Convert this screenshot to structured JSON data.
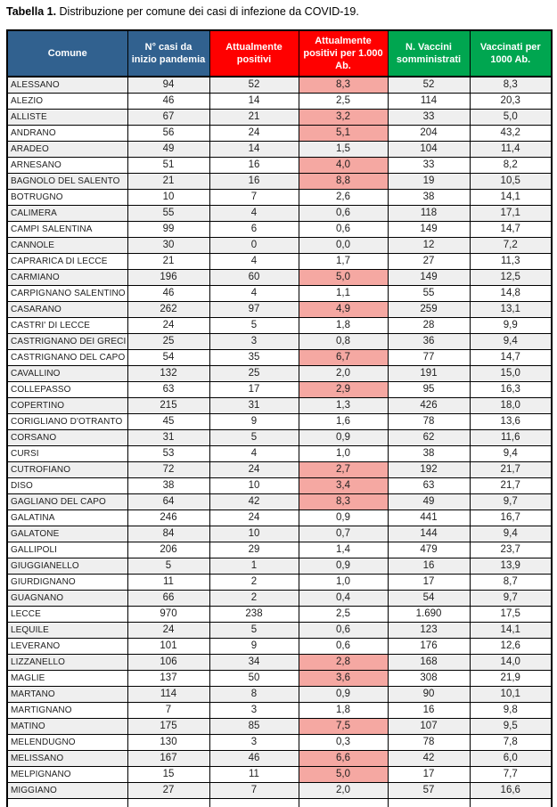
{
  "title": {
    "prefix": "Tabella 1.",
    "text": " Distribuzione per comune dei casi di infezione da COVID-19."
  },
  "colors": {
    "blue": "#31618F",
    "red": "#FF0000",
    "green": "#00A650",
    "pink": "#F5A8A2",
    "stripe": "#EFEFEF"
  },
  "table": {
    "columns": [
      {
        "key": "comune",
        "label": "Comune",
        "color": "blue"
      },
      {
        "key": "casi",
        "label": "N° casi da inizio pandemia",
        "color": "blue"
      },
      {
        "key": "positivi",
        "label": "Attualmente positivi",
        "color": "red"
      },
      {
        "key": "per1000",
        "label": "Attualmente positivi per 1.000 Ab.",
        "color": "red"
      },
      {
        "key": "vaccini",
        "label": "N. Vaccini somministrati",
        "color": "green"
      },
      {
        "key": "vacc1000",
        "label": "Vaccinati per 1000 Ab.",
        "color": "green"
      }
    ],
    "rows": [
      {
        "comune": "ALESSANO",
        "casi": "94",
        "positivi": "52",
        "per1000": "8,3",
        "per1000_highlight": true,
        "vaccini": "52",
        "vacc1000": "8,3"
      },
      {
        "comune": "ALEZIO",
        "casi": "46",
        "positivi": "14",
        "per1000": "2,5",
        "per1000_highlight": false,
        "vaccini": "114",
        "vacc1000": "20,3"
      },
      {
        "comune": "ALLISTE",
        "casi": "67",
        "positivi": "21",
        "per1000": "3,2",
        "per1000_highlight": true,
        "vaccini": "33",
        "vacc1000": "5,0"
      },
      {
        "comune": "ANDRANO",
        "casi": "56",
        "positivi": "24",
        "per1000": "5,1",
        "per1000_highlight": true,
        "vaccini": "204",
        "vacc1000": "43,2"
      },
      {
        "comune": "ARADEO",
        "casi": "49",
        "positivi": "14",
        "per1000": "1,5",
        "per1000_highlight": false,
        "vaccini": "104",
        "vacc1000": "11,4"
      },
      {
        "comune": "ARNESANO",
        "casi": "51",
        "positivi": "16",
        "per1000": "4,0",
        "per1000_highlight": true,
        "vaccini": "33",
        "vacc1000": "8,2"
      },
      {
        "comune": "BAGNOLO DEL SALENTO",
        "casi": "21",
        "positivi": "16",
        "per1000": "8,8",
        "per1000_highlight": true,
        "vaccini": "19",
        "vacc1000": "10,5"
      },
      {
        "comune": "BOTRUGNO",
        "casi": "10",
        "positivi": "7",
        "per1000": "2,6",
        "per1000_highlight": false,
        "vaccini": "38",
        "vacc1000": "14,1"
      },
      {
        "comune": "CALIMERA",
        "casi": "55",
        "positivi": "4",
        "per1000": "0,6",
        "per1000_highlight": false,
        "vaccini": "118",
        "vacc1000": "17,1"
      },
      {
        "comune": "CAMPI SALENTINA",
        "casi": "99",
        "positivi": "6",
        "per1000": "0,6",
        "per1000_highlight": false,
        "vaccini": "149",
        "vacc1000": "14,7"
      },
      {
        "comune": "CANNOLE",
        "casi": "30",
        "positivi": "0",
        "per1000": "0,0",
        "per1000_highlight": false,
        "vaccini": "12",
        "vacc1000": "7,2"
      },
      {
        "comune": "CAPRARICA DI LECCE",
        "casi": "21",
        "positivi": "4",
        "per1000": "1,7",
        "per1000_highlight": false,
        "vaccini": "27",
        "vacc1000": "11,3"
      },
      {
        "comune": "CARMIANO",
        "casi": "196",
        "positivi": "60",
        "per1000": "5,0",
        "per1000_highlight": true,
        "vaccini": "149",
        "vacc1000": "12,5"
      },
      {
        "comune": "CARPIGNANO SALENTINO",
        "casi": "46",
        "positivi": "4",
        "per1000": "1,1",
        "per1000_highlight": false,
        "vaccini": "55",
        "vacc1000": "14,8"
      },
      {
        "comune": "CASARANO",
        "casi": "262",
        "positivi": "97",
        "per1000": "4,9",
        "per1000_highlight": true,
        "vaccini": "259",
        "vacc1000": "13,1"
      },
      {
        "comune": "CASTRI' DI LECCE",
        "casi": "24",
        "positivi": "5",
        "per1000": "1,8",
        "per1000_highlight": false,
        "vaccini": "28",
        "vacc1000": "9,9"
      },
      {
        "comune": "CASTRIGNANO DEI GRECI",
        "casi": "25",
        "positivi": "3",
        "per1000": "0,8",
        "per1000_highlight": false,
        "vaccini": "36",
        "vacc1000": "9,4"
      },
      {
        "comune": "CASTRIGNANO DEL CAPO",
        "casi": "54",
        "positivi": "35",
        "per1000": "6,7",
        "per1000_highlight": true,
        "vaccini": "77",
        "vacc1000": "14,7"
      },
      {
        "comune": "CAVALLINO",
        "casi": "132",
        "positivi": "25",
        "per1000": "2,0",
        "per1000_highlight": false,
        "vaccini": "191",
        "vacc1000": "15,0"
      },
      {
        "comune": "COLLEPASSO",
        "casi": "63",
        "positivi": "17",
        "per1000": "2,9",
        "per1000_highlight": true,
        "vaccini": "95",
        "vacc1000": "16,3"
      },
      {
        "comune": "COPERTINO",
        "casi": "215",
        "positivi": "31",
        "per1000": "1,3",
        "per1000_highlight": false,
        "vaccini": "426",
        "vacc1000": "18,0"
      },
      {
        "comune": "CORIGLIANO D'OTRANTO",
        "casi": "45",
        "positivi": "9",
        "per1000": "1,6",
        "per1000_highlight": false,
        "vaccini": "78",
        "vacc1000": "13,6"
      },
      {
        "comune": "CORSANO",
        "casi": "31",
        "positivi": "5",
        "per1000": "0,9",
        "per1000_highlight": false,
        "vaccini": "62",
        "vacc1000": "11,6"
      },
      {
        "comune": "CURSI",
        "casi": "53",
        "positivi": "4",
        "per1000": "1,0",
        "per1000_highlight": false,
        "vaccini": "38",
        "vacc1000": "9,4"
      },
      {
        "comune": "CUTROFIANO",
        "casi": "72",
        "positivi": "24",
        "per1000": "2,7",
        "per1000_highlight": true,
        "vaccini": "192",
        "vacc1000": "21,7"
      },
      {
        "comune": "DISO",
        "casi": "38",
        "positivi": "10",
        "per1000": "3,4",
        "per1000_highlight": true,
        "vaccini": "63",
        "vacc1000": "21,7"
      },
      {
        "comune": "GAGLIANO DEL CAPO",
        "casi": "64",
        "positivi": "42",
        "per1000": "8,3",
        "per1000_highlight": true,
        "vaccini": "49",
        "vacc1000": "9,7"
      },
      {
        "comune": "GALATINA",
        "casi": "246",
        "positivi": "24",
        "per1000": "0,9",
        "per1000_highlight": false,
        "vaccini": "441",
        "vacc1000": "16,7"
      },
      {
        "comune": "GALATONE",
        "casi": "84",
        "positivi": "10",
        "per1000": "0,7",
        "per1000_highlight": false,
        "vaccini": "144",
        "vacc1000": "9,4"
      },
      {
        "comune": "GALLIPOLI",
        "casi": "206",
        "positivi": "29",
        "per1000": "1,4",
        "per1000_highlight": false,
        "vaccini": "479",
        "vacc1000": "23,7"
      },
      {
        "comune": "GIUGGIANELLO",
        "casi": "5",
        "positivi": "1",
        "per1000": "0,9",
        "per1000_highlight": false,
        "vaccini": "16",
        "vacc1000": "13,9"
      },
      {
        "comune": "GIURDIGNANO",
        "casi": "11",
        "positivi": "2",
        "per1000": "1,0",
        "per1000_highlight": false,
        "vaccini": "17",
        "vacc1000": "8,7"
      },
      {
        "comune": "GUAGNANO",
        "casi": "66",
        "positivi": "2",
        "per1000": "0,4",
        "per1000_highlight": false,
        "vaccini": "54",
        "vacc1000": "9,7"
      },
      {
        "comune": "LECCE",
        "casi": "970",
        "positivi": "238",
        "per1000": "2,5",
        "per1000_highlight": false,
        "vaccini": "1.690",
        "vacc1000": "17,5"
      },
      {
        "comune": "LEQUILE",
        "casi": "24",
        "positivi": "5",
        "per1000": "0,6",
        "per1000_highlight": false,
        "vaccini": "123",
        "vacc1000": "14,1"
      },
      {
        "comune": "LEVERANO",
        "casi": "101",
        "positivi": "9",
        "per1000": "0,6",
        "per1000_highlight": false,
        "vaccini": "176",
        "vacc1000": "12,6"
      },
      {
        "comune": "LIZZANELLO",
        "casi": "106",
        "positivi": "34",
        "per1000": "2,8",
        "per1000_highlight": true,
        "vaccini": "168",
        "vacc1000": "14,0"
      },
      {
        "comune": "MAGLIE",
        "casi": "137",
        "positivi": "50",
        "per1000": "3,6",
        "per1000_highlight": true,
        "vaccini": "308",
        "vacc1000": "21,9"
      },
      {
        "comune": "MARTANO",
        "casi": "114",
        "positivi": "8",
        "per1000": "0,9",
        "per1000_highlight": false,
        "vaccini": "90",
        "vacc1000": "10,1"
      },
      {
        "comune": "MARTIGNANO",
        "casi": "7",
        "positivi": "3",
        "per1000": "1,8",
        "per1000_highlight": false,
        "vaccini": "16",
        "vacc1000": "9,8"
      },
      {
        "comune": "MATINO",
        "casi": "175",
        "positivi": "85",
        "per1000": "7,5",
        "per1000_highlight": true,
        "vaccini": "107",
        "vacc1000": "9,5"
      },
      {
        "comune": "MELENDUGNO",
        "casi": "130",
        "positivi": "3",
        "per1000": "0,3",
        "per1000_highlight": false,
        "vaccini": "78",
        "vacc1000": "7,8"
      },
      {
        "comune": "MELISSANO",
        "casi": "167",
        "positivi": "46",
        "per1000": "6,6",
        "per1000_highlight": true,
        "vaccini": "42",
        "vacc1000": "6,0"
      },
      {
        "comune": "MELPIGNANO",
        "casi": "15",
        "positivi": "11",
        "per1000": "5,0",
        "per1000_highlight": true,
        "vaccini": "17",
        "vacc1000": "7,7"
      },
      {
        "comune": "MIGGIANO",
        "casi": "27",
        "positivi": "7",
        "per1000": "2,0",
        "per1000_highlight": false,
        "vaccini": "57",
        "vacc1000": "16,6"
      }
    ]
  }
}
